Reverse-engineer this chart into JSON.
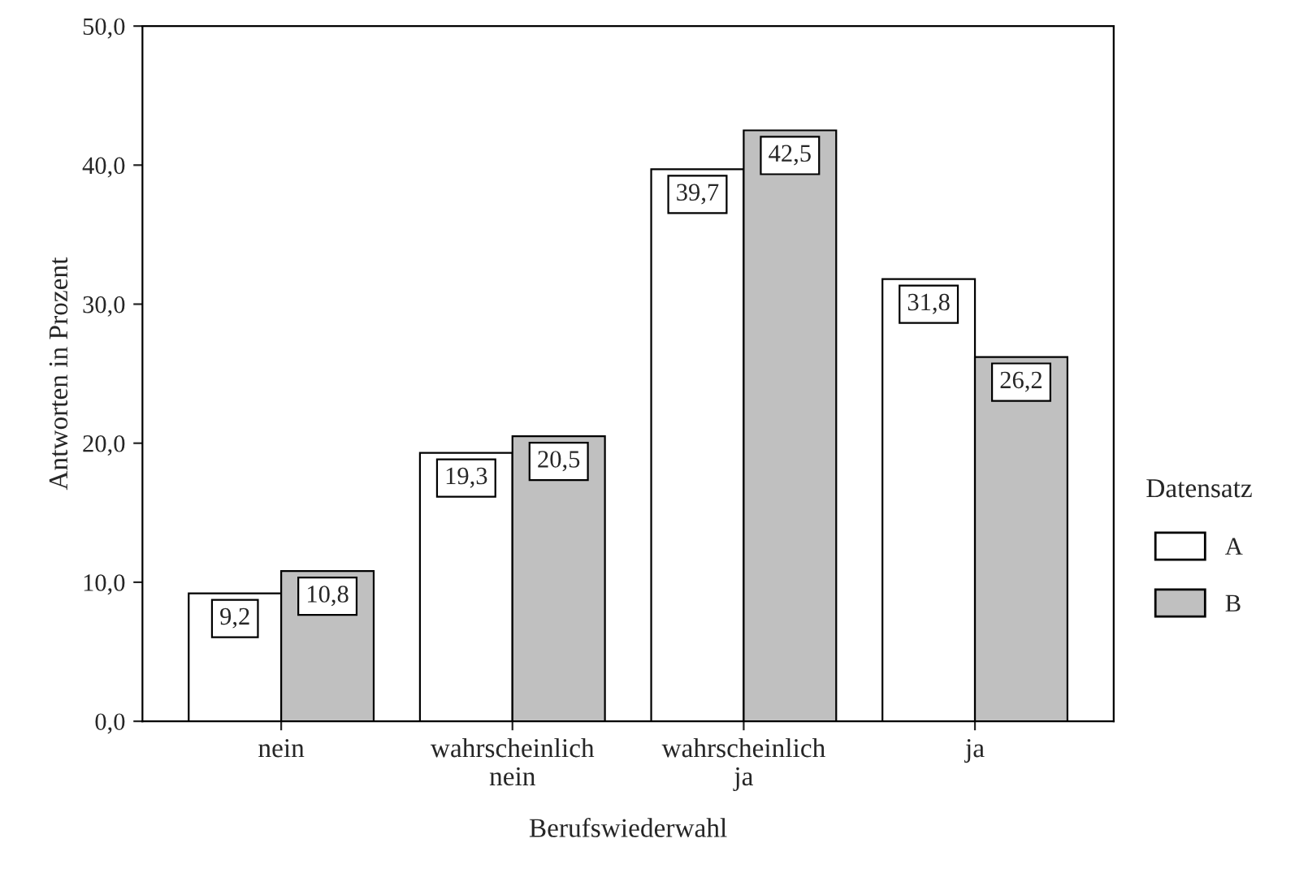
{
  "chart_data": {
    "type": "bar",
    "xlabel": "Berufswiederwahl",
    "ylabel": "Antworten in Prozent",
    "legend_title": "Datensatz",
    "categories": [
      "nein",
      "wahrscheinlich\nnein",
      "wahrscheinlich\nja",
      "ja"
    ],
    "series": [
      {
        "name": "A",
        "color": "#ffffff",
        "values": [
          9.2,
          19.3,
          39.7,
          31.8
        ],
        "value_labels": [
          "9,2",
          "19,3",
          "39,7",
          "31,8"
        ]
      },
      {
        "name": "B",
        "color": "#c0c0c0",
        "values": [
          10.8,
          20.5,
          42.5,
          26.2
        ],
        "value_labels": [
          "10,8",
          "20,5",
          "42,5",
          "26,2"
        ]
      }
    ],
    "ylim": [
      0,
      50
    ],
    "yticks": [
      {
        "value": 0,
        "label": "0,0"
      },
      {
        "value": 10,
        "label": "10,0"
      },
      {
        "value": 20,
        "label": "20,0"
      },
      {
        "value": 30,
        "label": "30,0"
      },
      {
        "value": 40,
        "label": "40,0"
      },
      {
        "value": 50,
        "label": "50,0"
      }
    ],
    "grid": false,
    "legend": "right"
  }
}
